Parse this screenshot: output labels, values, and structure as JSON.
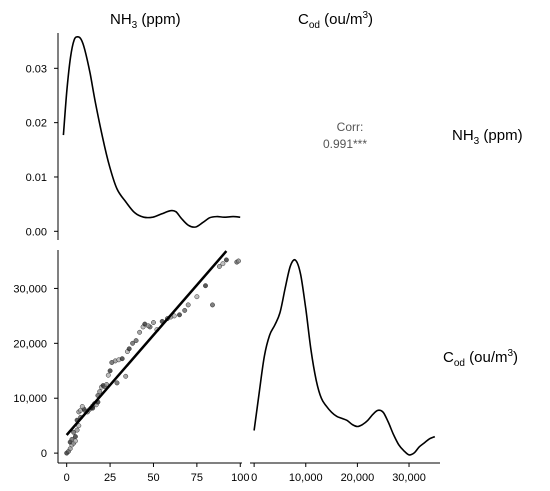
{
  "headers": {
    "col1": {
      "main": "NH",
      "sub": "3",
      "rest": " (ppm)"
    },
    "col2": {
      "main": "C",
      "sub": "od",
      "rest1": " (ou/m",
      "sup": "3",
      "rest2": ")"
    },
    "row1": {
      "main": "NH",
      "sub": "3",
      "rest": " (ppm)"
    },
    "row2": {
      "main": "C",
      "sub": "od",
      "rest1": " (ou/m",
      "sup": "3",
      "rest2": ")"
    }
  },
  "corr_label": "Corr:",
  "corr_value": "0.991***",
  "chart_data": [
    {
      "type": "line",
      "panel": "NH3 density",
      "xlim": [
        -3,
        100
      ],
      "ylim": [
        -0.0016,
        0.0365
      ],
      "y_ticks": [
        "0.00",
        "0.01",
        "0.02",
        "0.03"
      ],
      "y_tick_values": [
        0,
        0.01,
        0.02,
        0.03
      ],
      "x": [
        0,
        2,
        4,
        6,
        8,
        10,
        12,
        15,
        18,
        22,
        26,
        30,
        35,
        40,
        45,
        50,
        55,
        60,
        63,
        66,
        70,
        74,
        78,
        82,
        86,
        90,
        95,
        99
      ],
      "y": [
        0.0177,
        0.026,
        0.032,
        0.0352,
        0.0358,
        0.0353,
        0.0334,
        0.029,
        0.0236,
        0.0172,
        0.0118,
        0.0078,
        0.0054,
        0.0034,
        0.0026,
        0.0026,
        0.0032,
        0.0038,
        0.0036,
        0.0024,
        0.0011,
        0.0008,
        0.0016,
        0.0025,
        0.0027,
        0.0026,
        0.0027,
        0.0026
      ]
    },
    {
      "type": "scatter",
      "panel": "NH3 vs Cod",
      "xlim": [
        -5,
        101
      ],
      "ylim": [
        -1800,
        37000
      ],
      "x_ticks": [
        "0",
        "25",
        "50",
        "75",
        "100"
      ],
      "x_tick_values": [
        0,
        25,
        50,
        75,
        100
      ],
      "y_ticks": [
        "0",
        "10,000",
        "20,000",
        "30,000"
      ],
      "y_tick_values": [
        0,
        10000,
        20000,
        30000
      ],
      "points": [
        [
          0,
          0
        ],
        [
          1,
          300
        ],
        [
          2,
          800
        ],
        [
          3,
          1500
        ],
        [
          2,
          2000
        ],
        [
          3,
          2500
        ],
        [
          4,
          1800
        ],
        [
          5,
          2200
        ],
        [
          5,
          3000
        ],
        [
          4,
          3800
        ],
        [
          6,
          4200
        ],
        [
          7,
          5000
        ],
        [
          6,
          6000
        ],
        [
          8,
          6500
        ],
        [
          7,
          7500
        ],
        [
          8,
          7800
        ],
        [
          10,
          8000
        ],
        [
          11,
          7600
        ],
        [
          12,
          7500
        ],
        [
          13,
          7900
        ],
        [
          14,
          8200
        ],
        [
          15,
          8600
        ],
        [
          16,
          9000
        ],
        [
          17,
          8800
        ],
        [
          18,
          9300
        ],
        [
          18,
          10500
        ],
        [
          19,
          11200
        ],
        [
          20,
          12000
        ],
        [
          21,
          12300
        ],
        [
          22,
          12100
        ],
        [
          23,
          12500
        ],
        [
          24,
          14200
        ],
        [
          25,
          15000
        ],
        [
          26,
          16500
        ],
        [
          28,
          16800
        ],
        [
          30,
          17000
        ],
        [
          32,
          17200
        ],
        [
          29,
          12800
        ],
        [
          34,
          14000
        ],
        [
          35,
          18500
        ],
        [
          36,
          19000
        ],
        [
          40,
          20500
        ],
        [
          42,
          22000
        ],
        [
          44,
          23000
        ],
        [
          45,
          23500
        ],
        [
          48,
          23000
        ],
        [
          50,
          23800
        ],
        [
          52,
          22500
        ],
        [
          55,
          24000
        ],
        [
          58,
          24500
        ],
        [
          60,
          24800
        ],
        [
          62,
          25000
        ],
        [
          65,
          25200
        ],
        [
          68,
          26000
        ],
        [
          70,
          27000
        ],
        [
          75,
          28500
        ],
        [
          80,
          30500
        ],
        [
          84,
          27000
        ],
        [
          88,
          34000
        ],
        [
          90,
          34500
        ],
        [
          92,
          35200
        ],
        [
          98,
          34800
        ],
        [
          99,
          35000
        ],
        [
          9,
          8500
        ],
        [
          15,
          8200
        ],
        [
          38,
          20000
        ],
        [
          47,
          23200
        ]
      ],
      "fit": {
        "x": [
          0,
          92
        ],
        "y": [
          3300,
          36800
        ]
      }
    },
    {
      "type": "line",
      "panel": "Cod density",
      "xlim": [
        -800,
        36000
      ],
      "x_ticks": [
        "0",
        "10,000",
        "20,000",
        "30,000"
      ],
      "x_tick_values": [
        0,
        10000,
        20000,
        30000
      ],
      "x": [
        0,
        1000,
        2000,
        3000,
        4000,
        5000,
        6000,
        7000,
        8000,
        9000,
        10000,
        11000,
        12000,
        13000,
        14000,
        15000,
        16000,
        17000,
        18000,
        19000,
        20000,
        21000,
        22000,
        23000,
        24000,
        25000,
        26000,
        27000,
        28000,
        29000,
        30000,
        31000,
        32000,
        33000,
        34000,
        35000
      ],
      "y": [
        0.16,
        0.35,
        0.53,
        0.63,
        0.68,
        0.74,
        0.86,
        0.97,
        1.0,
        0.93,
        0.76,
        0.56,
        0.41,
        0.32,
        0.28,
        0.25,
        0.23,
        0.22,
        0.21,
        0.19,
        0.18,
        0.19,
        0.21,
        0.24,
        0.26,
        0.25,
        0.2,
        0.14,
        0.09,
        0.06,
        0.04,
        0.05,
        0.08,
        0.1,
        0.12,
        0.13
      ],
      "ylim": [
        0,
        1.05
      ]
    }
  ]
}
